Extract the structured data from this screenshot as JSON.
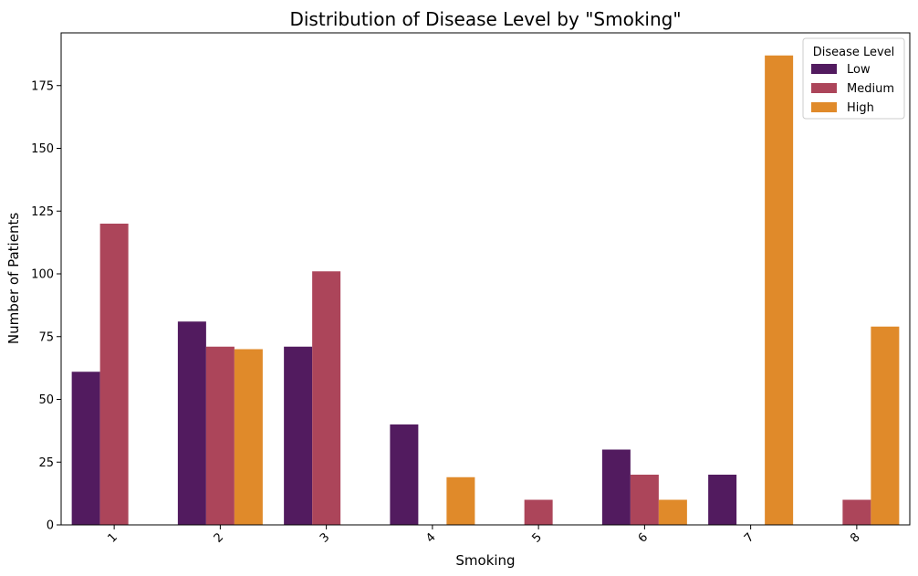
{
  "chart_data": {
    "type": "bar",
    "title": "Distribution of Disease Level by \"Smoking\"",
    "xlabel": "Smoking",
    "ylabel": "Number of Patients",
    "categories": [
      "1",
      "2",
      "3",
      "4",
      "5",
      "6",
      "7",
      "8"
    ],
    "ylim": [
      0,
      196
    ],
    "yticks": [
      0,
      25,
      50,
      75,
      100,
      125,
      150,
      175
    ],
    "legend": {
      "title": "Disease Level",
      "position": "top-right"
    },
    "grid": false,
    "series": [
      {
        "name": "Low",
        "color": "#521b5f",
        "values": [
          61,
          81,
          71,
          40,
          0,
          30,
          20,
          0
        ]
      },
      {
        "name": "Medium",
        "color": "#ac455a",
        "values": [
          120,
          71,
          101,
          0,
          10,
          20,
          0,
          10
        ]
      },
      {
        "name": "High",
        "color": "#e08a2a",
        "values": [
          0,
          70,
          0,
          19,
          0,
          10,
          187,
          79
        ]
      }
    ]
  }
}
